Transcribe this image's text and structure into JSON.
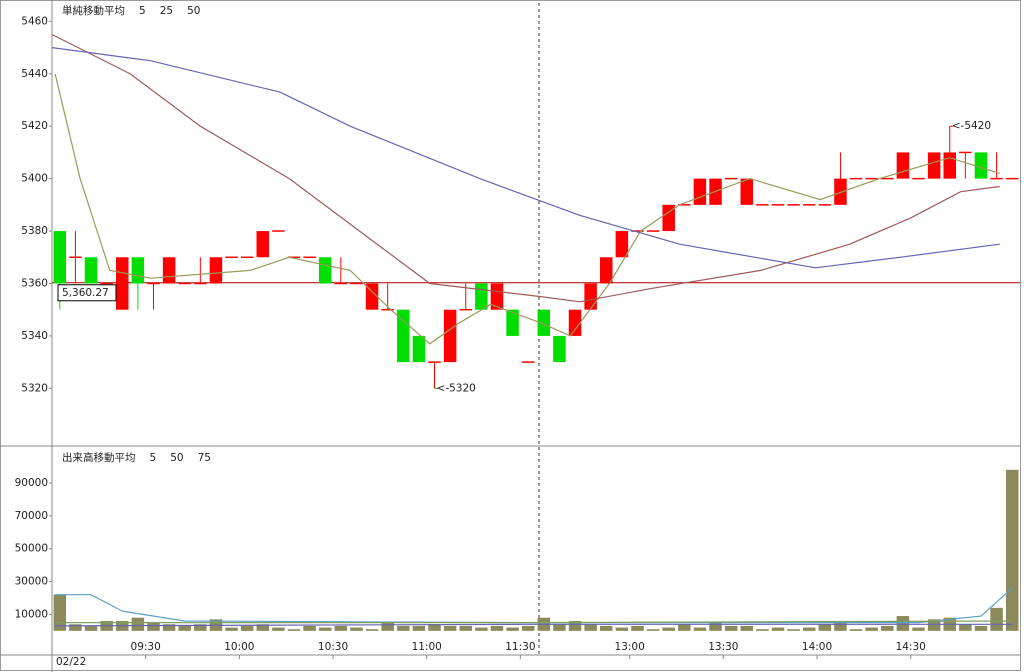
{
  "chart_data": [
    {
      "type": "candlestick",
      "title": "単純移動平均",
      "title_color": "#557799",
      "up_color": "#ff0000",
      "down_color": "#00dd00",
      "x": [
        0,
        1,
        2,
        3,
        4,
        5,
        6,
        7,
        8,
        9,
        10,
        11,
        12,
        13,
        14,
        15,
        16,
        17,
        18,
        19,
        20,
        21,
        22,
        23,
        24,
        25,
        26,
        27,
        28,
        29,
        30,
        31,
        32,
        33,
        34,
        35,
        36,
        37,
        38,
        39,
        40,
        41,
        42,
        43,
        44,
        45,
        46,
        47,
        48,
        49,
        50,
        51,
        52,
        53,
        54,
        55,
        56,
        57,
        58,
        59,
        60,
        61
      ],
      "open": [
        5380,
        5370,
        5370,
        5360,
        5350,
        5370,
        5360,
        5360,
        5360,
        5360,
        5360,
        5370,
        5370,
        5370,
        5380,
        5370,
        5370,
        5370,
        5360,
        5360,
        5350,
        5350,
        5350,
        5340,
        5330,
        5330,
        5350,
        5360,
        5350,
        5350,
        5330,
        5350,
        5340,
        5340,
        5350,
        5360,
        5370,
        5380,
        5380,
        5380,
        5390,
        5390,
        5390,
        5400,
        5390,
        5390,
        5390,
        5390,
        5390,
        5390,
        5390,
        5400,
        5400,
        5400,
        5400,
        5400,
        5400,
        5400,
        5410,
        5410,
        5400,
        5400
      ],
      "high": [
        5380,
        5380,
        5370,
        5360,
        5370,
        5370,
        5360,
        5370,
        5360,
        5370,
        5370,
        5370,
        5370,
        5380,
        5380,
        5370,
        5370,
        5370,
        5370,
        5360,
        5360,
        5360,
        5350,
        5340,
        5330,
        5350,
        5360,
        5360,
        5360,
        5350,
        5330,
        5350,
        5340,
        5350,
        5360,
        5370,
        5380,
        5380,
        5380,
        5390,
        5390,
        5400,
        5400,
        5400,
        5400,
        5390,
        5390,
        5390,
        5390,
        5390,
        5410,
        5400,
        5400,
        5400,
        5410,
        5400,
        5410,
        5420,
        5410,
        5410,
        5410,
        5400
      ],
      "low": [
        5350,
        5360,
        5360,
        5360,
        5350,
        5350,
        5350,
        5360,
        5360,
        5360,
        5360,
        5370,
        5370,
        5370,
        5380,
        5370,
        5370,
        5360,
        5360,
        5360,
        5350,
        5350,
        5330,
        5330,
        5320,
        5330,
        5350,
        5350,
        5350,
        5340,
        5330,
        5340,
        5330,
        5340,
        5350,
        5360,
        5370,
        5380,
        5380,
        5380,
        5390,
        5390,
        5390,
        5400,
        5390,
        5390,
        5390,
        5390,
        5390,
        5390,
        5390,
        5400,
        5400,
        5400,
        5400,
        5400,
        5400,
        5400,
        5400,
        5400,
        5400,
        5400
      ],
      "close": [
        5360,
        5370,
        5360,
        5360,
        5370,
        5360,
        5360,
        5370,
        5360,
        5360,
        5370,
        5370,
        5370,
        5380,
        5380,
        5370,
        5370,
        5360,
        5360,
        5360,
        5360,
        5350,
        5330,
        5330,
        5330,
        5350,
        5350,
        5350,
        5360,
        5340,
        5330,
        5340,
        5330,
        5350,
        5360,
        5370,
        5380,
        5380,
        5380,
        5390,
        5390,
        5400,
        5400,
        5400,
        5400,
        5390,
        5390,
        5390,
        5390,
        5390,
        5400,
        5400,
        5400,
        5400,
        5410,
        5400,
        5410,
        5410,
        5410,
        5400,
        5400,
        5400
      ],
      "series": [
        {
          "name": "5",
          "color": "#9a9a5a",
          "x": [
            -0.3,
            1.3,
            3.2,
            5.8,
            12.2,
            14.7,
            18.6,
            21.2,
            23.7,
            25.6,
            27.6,
            30.8,
            32.7,
            35.2,
            37.2,
            39.7,
            44.2,
            48.7,
            52.5,
            57.0,
            60.2
          ],
          "values": [
            5440,
            5400,
            5365,
            5362,
            5365,
            5370,
            5365,
            5350,
            5337,
            5345,
            5352,
            5345,
            5340,
            5360,
            5380,
            5390,
            5400,
            5392,
            5400,
            5408,
            5402
          ]
        },
        {
          "name": "25",
          "color": "#a05a5a",
          "x": [
            -0.5,
            4.5,
            9.0,
            14.7,
            19.2,
            23.7,
            30.8,
            33.3,
            37.8,
            44.9,
            50.6,
            54.5,
            57.7,
            60.2
          ],
          "values": [
            5455,
            5440,
            5420,
            5400,
            5380,
            5360,
            5355,
            5353,
            5358,
            5365,
            5375,
            5385,
            5395,
            5397
          ]
        },
        {
          "name": "50",
          "color": "#6464b4",
          "x": [
            -0.5,
            5.8,
            14.1,
            18.6,
            26.9,
            33.3,
            39.7,
            48.4,
            53.8,
            60.2
          ],
          "values": [
            5450,
            5445,
            5433,
            5420,
            5400,
            5386,
            5375,
            5366,
            5370,
            5375
          ]
        }
      ],
      "last_price": {
        "value": 5360.27,
        "label": "5,360.27",
        "color": "#aa0000"
      },
      "annotations": [
        {
          "x": 24,
          "y": 5320,
          "label": "<-5320",
          "color": "#00aa00"
        },
        {
          "x": 57,
          "y": 5420,
          "label": "<-5420",
          "color": "#ff0000"
        }
      ],
      "xlim": [
        -0.5,
        61.5
      ],
      "ylim": [
        5298,
        5467
      ],
      "yticks": [
        5320,
        5340,
        5360,
        5380,
        5400,
        5420,
        5440,
        5460
      ]
    },
    {
      "type": "bar",
      "title": "出来高移動平均",
      "title_color": "#557799",
      "color": "#8c8a5c",
      "x": [
        0,
        1,
        2,
        3,
        4,
        5,
        6,
        7,
        8,
        9,
        10,
        11,
        12,
        13,
        14,
        15,
        16,
        17,
        18,
        19,
        20,
        21,
        22,
        23,
        24,
        25,
        26,
        27,
        28,
        29,
        30,
        31,
        32,
        33,
        34,
        35,
        36,
        37,
        38,
        39,
        40,
        41,
        42,
        43,
        44,
        45,
        46,
        47,
        48,
        49,
        50,
        51,
        52,
        53,
        54,
        55,
        56,
        57,
        58,
        59,
        60,
        61
      ],
      "values": [
        22000,
        4000,
        3000,
        6000,
        6000,
        8000,
        5000,
        4000,
        3000,
        4000,
        7000,
        2000,
        3000,
        4000,
        2000,
        1000,
        3000,
        2000,
        3000,
        2000,
        1000,
        5000,
        3000,
        3000,
        4000,
        3000,
        3000,
        2000,
        3000,
        2000,
        3000,
        8000,
        4000,
        6000,
        4000,
        3000,
        2000,
        3000,
        1000,
        2000,
        4000,
        2000,
        5000,
        3000,
        3000,
        1000,
        2000,
        1000,
        2000,
        4000,
        6000,
        1000,
        2000,
        3000,
        9000,
        2000,
        7000,
        8000,
        4000,
        3000,
        14000,
        98000
      ],
      "series": [
        {
          "name": "5",
          "color": "#5aa0c8",
          "x": [
            -0.3,
            2,
            4,
            8,
            30,
            55,
            59,
            61
          ],
          "values": [
            22000,
            22000,
            12000,
            6000,
            5000,
            5000,
            9000,
            26000
          ]
        },
        {
          "name": "50",
          "color": "#6464b4",
          "x": [
            -0.3,
            30,
            61
          ],
          "values": [
            3000,
            4000,
            4000
          ]
        },
        {
          "name": "75",
          "color": "#80a060",
          "x": [
            -0.3,
            30,
            61
          ],
          "values": [
            5000,
            5000,
            6000
          ]
        }
      ],
      "xlim": [
        -0.5,
        61.5
      ],
      "ylim": [
        -14700,
        112500
      ],
      "yticks": [
        10000,
        30000,
        50000,
        70000,
        90000
      ],
      "xticks": [
        {
          "value": 5.5,
          "label": "09:30"
        },
        {
          "value": 11.5,
          "label": "10:00"
        },
        {
          "value": 17.5,
          "label": "10:30"
        },
        {
          "value": 23.5,
          "label": "11:00"
        },
        {
          "value": 29.5,
          "label": "11:30"
        },
        {
          "value": 36.5,
          "label": "13:00"
        },
        {
          "value": 42.5,
          "label": "13:30"
        },
        {
          "value": 48.5,
          "label": "14:00"
        },
        {
          "value": 54.5,
          "label": "14:30"
        }
      ],
      "xlabel": "02/22"
    }
  ]
}
